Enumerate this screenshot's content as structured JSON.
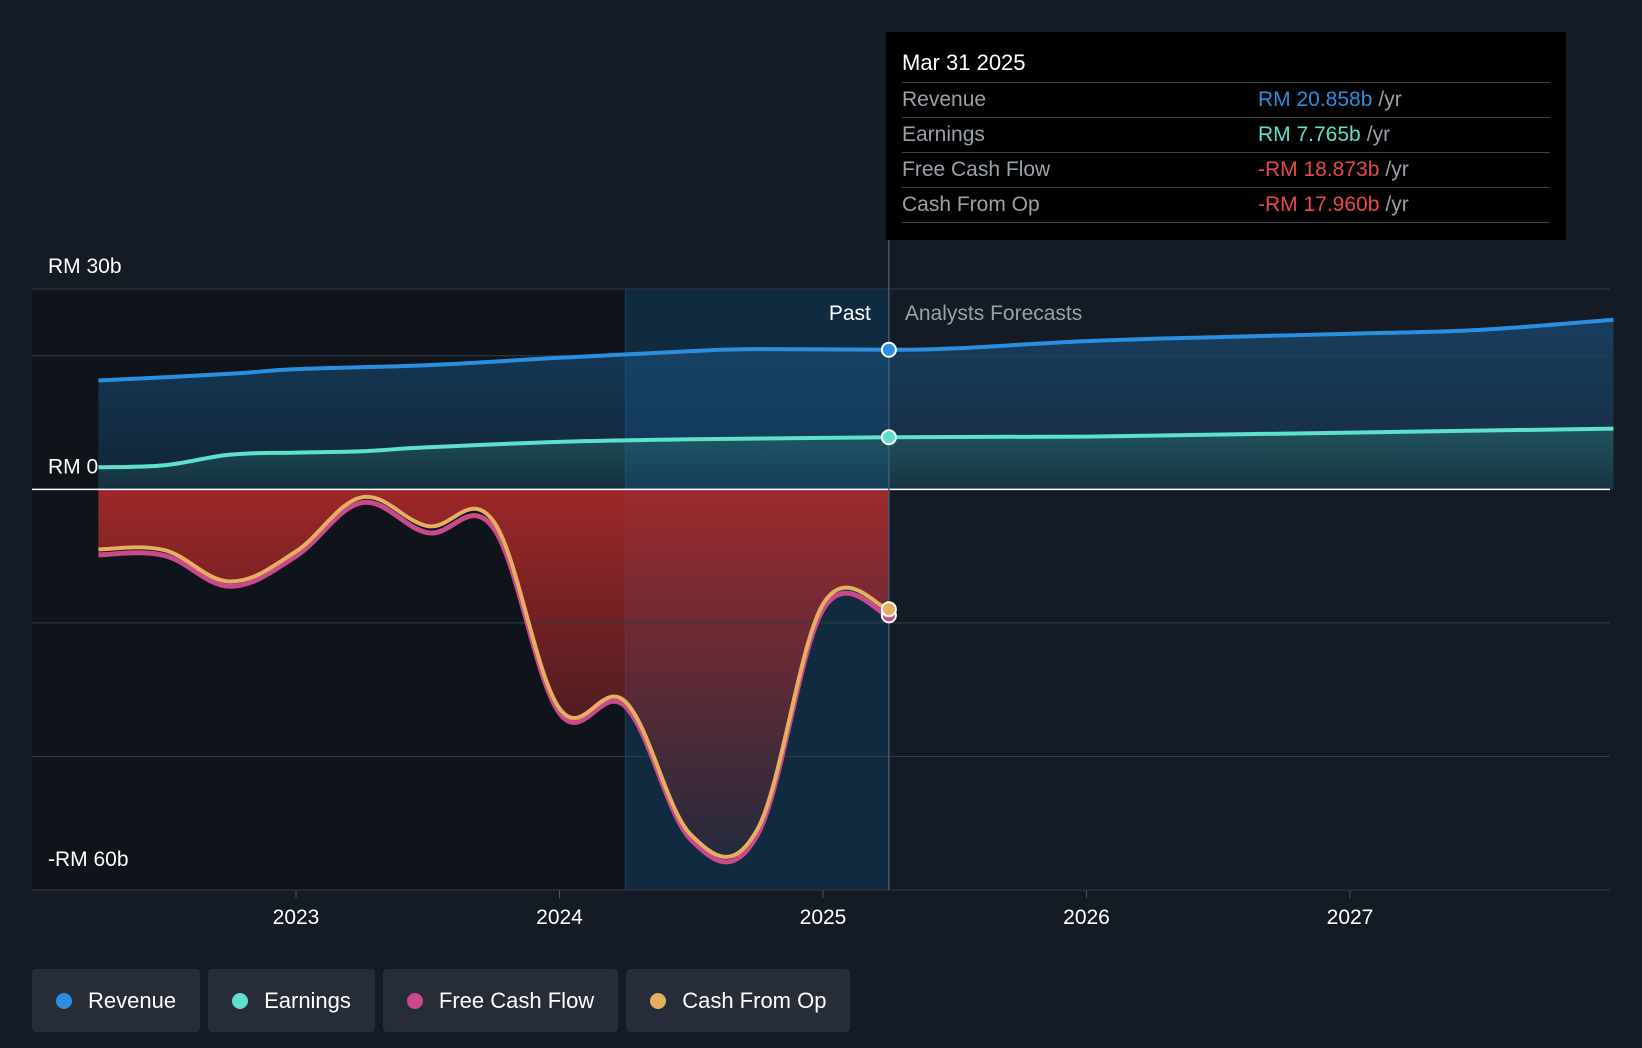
{
  "chart_data": {
    "type": "area",
    "y_axis_labels": [
      "RM 30b",
      "RM 0",
      "-RM 60b"
    ],
    "ylim": [
      -60,
      30
    ],
    "x_ticks": [
      "2023",
      "2024",
      "2025",
      "2026",
      "2027"
    ],
    "divider_labels": {
      "past": "Past",
      "forecast": "Analysts Forecasts"
    },
    "past_end": 2025.25,
    "series": [
      {
        "name": "Revenue",
        "color": "#2a8fe0",
        "x": [
          2022.25,
          2022.75,
          2023.0,
          2023.5,
          2024.0,
          2024.5,
          2024.75,
          2025.25,
          2025.5,
          2026.0,
          2026.5,
          2027.0,
          2027.5,
          2028.0
        ],
        "y": [
          16.3,
          17.3,
          18.0,
          18.6,
          19.7,
          20.7,
          21.0,
          20.9,
          21.1,
          22.2,
          22.8,
          23.3,
          23.9,
          25.4
        ]
      },
      {
        "name": "Earnings",
        "color": "#5de0cc",
        "x": [
          2022.25,
          2022.5,
          2022.75,
          2023.0,
          2023.25,
          2023.5,
          2024.0,
          2024.5,
          2025.0,
          2025.25,
          2026.0,
          2027.0,
          2028.0
        ],
        "y": [
          3.3,
          3.6,
          5.2,
          5.5,
          5.7,
          6.3,
          7.1,
          7.5,
          7.7,
          7.8,
          7.9,
          8.5,
          9.1
        ]
      },
      {
        "name": "Free Cash Flow",
        "color": "#c94a8a",
        "x": [
          2022.25,
          2022.5,
          2022.75,
          2023.0,
          2023.25,
          2023.5,
          2023.75,
          2024.0,
          2024.25,
          2024.5,
          2024.75,
          2025.0,
          2025.25
        ],
        "y": [
          -9.8,
          -9.9,
          -14.5,
          -10.0,
          -2.0,
          -6.5,
          -5.8,
          -33.5,
          -32.5,
          -52.5,
          -51.8,
          -18.0,
          -18.873
        ]
      },
      {
        "name": "Cash From Op",
        "color": "#e6ae60",
        "x": [
          2022.25,
          2022.5,
          2022.75,
          2023.0,
          2023.25,
          2023.5,
          2023.75,
          2024.0,
          2024.25,
          2024.5,
          2024.75,
          2025.0,
          2025.25
        ],
        "y": [
          -9.0,
          -9.1,
          -13.8,
          -9.3,
          -1.2,
          -5.5,
          -4.8,
          -32.8,
          -31.8,
          -51.8,
          -51.0,
          -17.2,
          -17.96
        ]
      }
    ]
  },
  "tooltip": {
    "date": "Mar 31 2025",
    "rows": [
      {
        "label": "Revenue",
        "value": "RM 20.858b",
        "unit": "/yr",
        "color": "#2a8fe0"
      },
      {
        "label": "Earnings",
        "value": "RM 7.765b",
        "unit": "/yr",
        "color": "#5de0cc"
      },
      {
        "label": "Free Cash Flow",
        "value": "-RM 18.873b",
        "unit": "/yr",
        "color": "#e84a4a"
      },
      {
        "label": "Cash From Op",
        "value": "-RM 17.960b",
        "unit": "/yr",
        "color": "#e84a4a"
      }
    ]
  },
  "legend": [
    {
      "label": "Revenue",
      "color": "#2a8fe0"
    },
    {
      "label": "Earnings",
      "color": "#5de0cc"
    },
    {
      "label": "Free Cash Flow",
      "color": "#c94a8a"
    },
    {
      "label": "Cash From Op",
      "color": "#e6ae60"
    }
  ]
}
